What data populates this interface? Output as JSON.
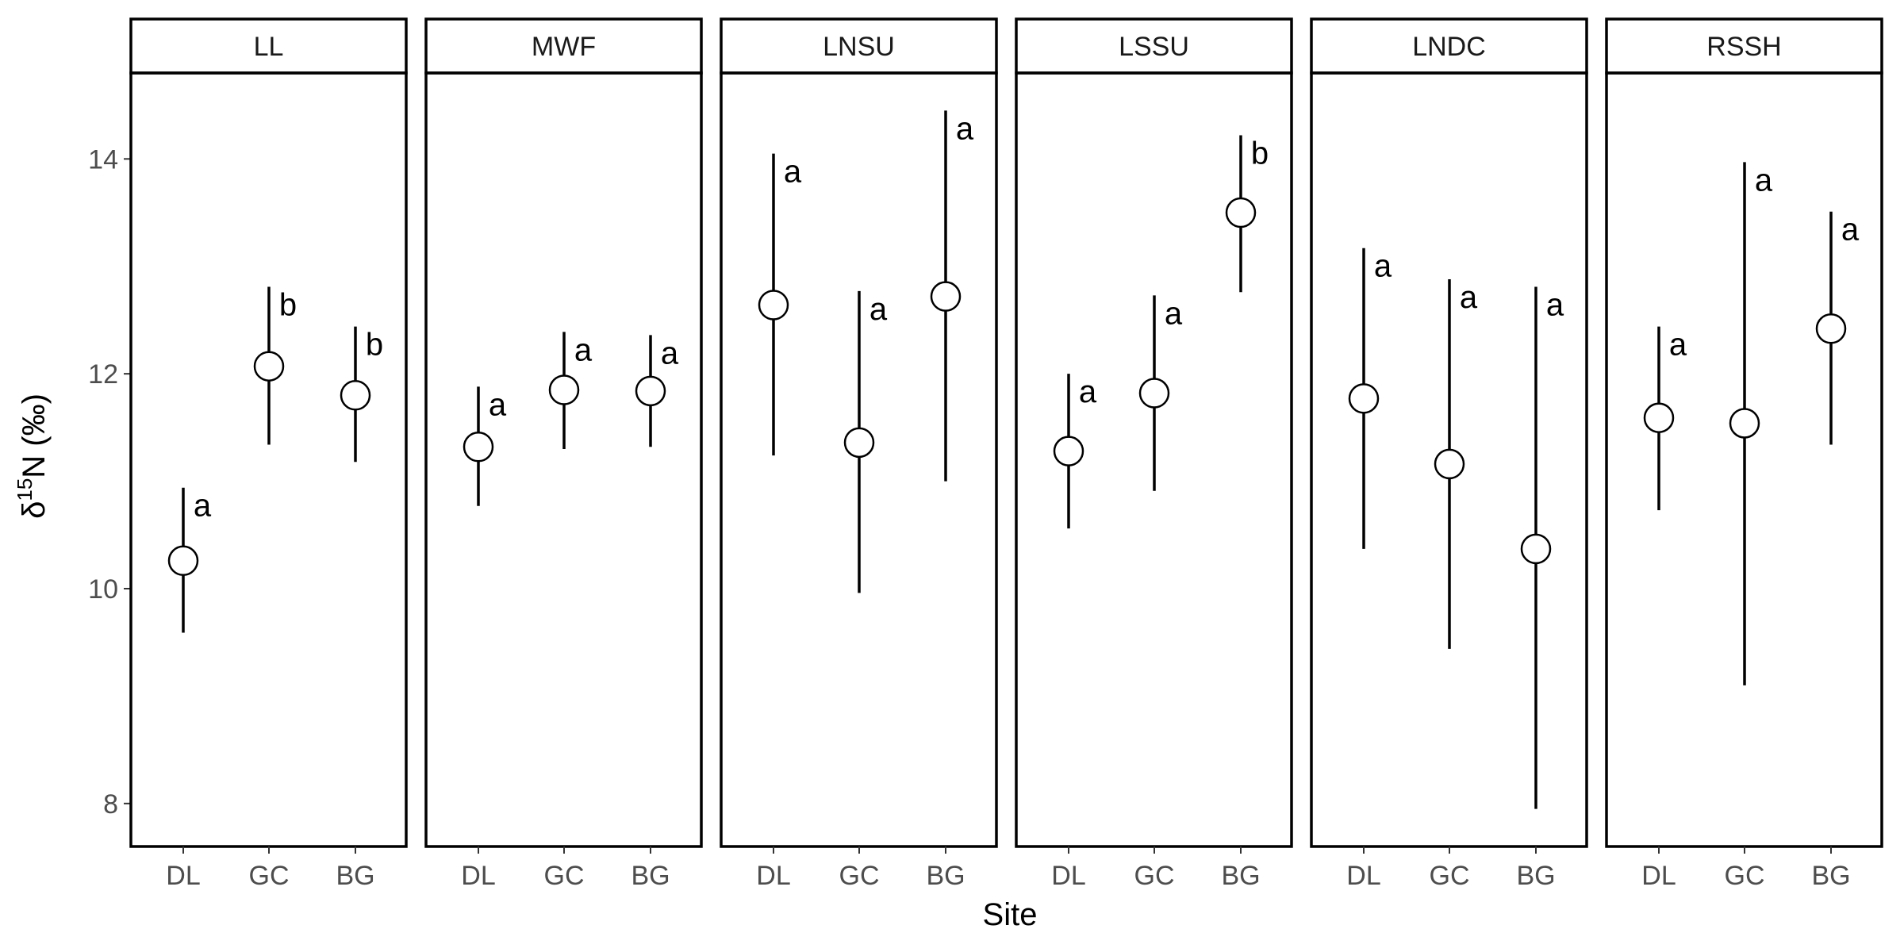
{
  "chart_data": {
    "type": "scatter",
    "xlabel": "Site",
    "ylabel": {
      "delta": "δ",
      "sup": "15",
      "rest": "N (‰)"
    },
    "ylim": [
      7.6,
      14.8
    ],
    "yticks": [
      8,
      10,
      12,
      14
    ],
    "categories": [
      "DL",
      "GC",
      "BG"
    ],
    "grid": false,
    "facets": [
      {
        "name": "LL",
        "points": [
          {
            "x": "DL",
            "mean": 10.26,
            "low": 9.59,
            "high": 10.94,
            "letter": "a"
          },
          {
            "x": "GC",
            "mean": 12.07,
            "low": 11.34,
            "high": 12.81,
            "letter": "b"
          },
          {
            "x": "BG",
            "mean": 11.8,
            "low": 11.18,
            "high": 12.44,
            "letter": "b"
          }
        ]
      },
      {
        "name": "MWF",
        "points": [
          {
            "x": "DL",
            "mean": 11.32,
            "low": 10.77,
            "high": 11.88,
            "letter": "a"
          },
          {
            "x": "GC",
            "mean": 11.85,
            "low": 11.3,
            "high": 12.39,
            "letter": "a"
          },
          {
            "x": "BG",
            "mean": 11.84,
            "low": 11.32,
            "high": 12.36,
            "letter": "a"
          }
        ]
      },
      {
        "name": "LNSU",
        "points": [
          {
            "x": "DL",
            "mean": 12.64,
            "low": 11.24,
            "high": 14.05,
            "letter": "a"
          },
          {
            "x": "GC",
            "mean": 11.36,
            "low": 9.96,
            "high": 12.77,
            "letter": "a"
          },
          {
            "x": "BG",
            "mean": 12.72,
            "low": 11.0,
            "high": 14.45,
            "letter": "a"
          }
        ]
      },
      {
        "name": "LSSU",
        "points": [
          {
            "x": "DL",
            "mean": 11.28,
            "low": 10.56,
            "high": 12.0,
            "letter": "a"
          },
          {
            "x": "GC",
            "mean": 11.82,
            "low": 10.91,
            "high": 12.73,
            "letter": "a"
          },
          {
            "x": "BG",
            "mean": 13.5,
            "low": 12.76,
            "high": 14.22,
            "letter": "b"
          }
        ]
      },
      {
        "name": "LNDC",
        "points": [
          {
            "x": "DL",
            "mean": 11.77,
            "low": 10.37,
            "high": 13.17,
            "letter": "a"
          },
          {
            "x": "GC",
            "mean": 11.16,
            "low": 9.44,
            "high": 12.88,
            "letter": "a"
          },
          {
            "x": "BG",
            "mean": 10.37,
            "low": 7.95,
            "high": 12.81,
            "letter": "a"
          }
        ]
      },
      {
        "name": "RSSH",
        "points": [
          {
            "x": "DL",
            "mean": 11.59,
            "low": 10.73,
            "high": 12.44,
            "letter": "a"
          },
          {
            "x": "GC",
            "mean": 11.54,
            "low": 9.1,
            "high": 13.97,
            "letter": "a"
          },
          {
            "x": "BG",
            "mean": 12.42,
            "low": 11.34,
            "high": 13.51,
            "letter": "a"
          }
        ]
      }
    ]
  }
}
